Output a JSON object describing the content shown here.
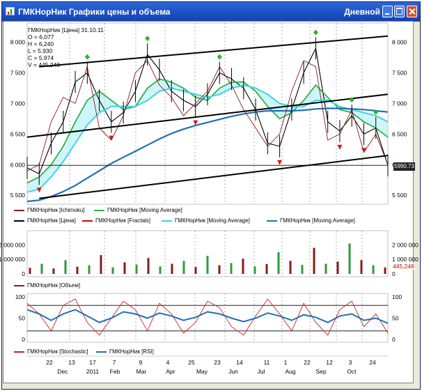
{
  "window": {
    "title": "ГМКНорНик Графики цены и объема",
    "period": "Дневной",
    "icon": "chart-app-icon",
    "buttons": [
      "minimize-icon",
      "maximize-icon",
      "close-icon"
    ]
  },
  "info_box": {
    "header": "ГМКНорНик [Цена] 31.10.11",
    "open": "O = 6,077",
    "high": "H = 6,240",
    "low": "L = 5,930",
    "close": "C = 5,974",
    "volume": "V = 445,248"
  },
  "last_price_label": "5990.73",
  "last_volume_label": "445,248",
  "legends": {
    "price": [
      {
        "label": "ГМКНорНик [Ichimoku]",
        "color": "#8b1a1a"
      },
      {
        "label": "ГМКНорНик [Moving Average]",
        "color": "#2db34a"
      },
      {
        "label": "ГМКНорНик [Цена]",
        "color": "#000000"
      },
      {
        "label": "ГМКНорНик [Fractals]",
        "color": "#cc0000"
      },
      {
        "label": "ГМКНорНик [Moving Average]",
        "color": "#3cd4e6"
      },
      {
        "label": "ГМКНорНик [Moving Average]",
        "color": "#1f6fb4"
      }
    ],
    "volume": [
      {
        "label": "ГМКНорНик [Объем]",
        "color": "#8b1a1a"
      }
    ],
    "oscillator": [
      {
        "label": "ГМКНорНик [Stochastic]",
        "color": "#cc2222"
      },
      {
        "label": "ГМКНорНик [RSI]",
        "color": "#1f6fb4"
      }
    ]
  },
  "chart_data": [
    {
      "type": "line",
      "name": "price-panel",
      "y_ticks": [
        "8 000",
        "7 500",
        "7 000",
        "6 500",
        "6 000",
        "5 500"
      ],
      "y_tick_values": [
        8000,
        7500,
        7000,
        6500,
        6000,
        5500
      ],
      "ylim": [
        5400,
        8200
      ],
      "x": [
        0,
        8,
        16,
        24,
        32,
        40,
        48,
        56,
        64,
        72,
        80,
        88,
        96,
        104,
        112,
        120,
        128,
        136,
        144,
        152,
        160,
        168,
        176,
        184,
        192,
        200,
        208,
        216,
        224,
        232,
        240
      ],
      "series": [
        {
          "name": "ГМКНорНик [Цена]",
          "values": [
            5950,
            5850,
            6350,
            6700,
            7350,
            7500,
            7050,
            6700,
            6850,
            7200,
            7800,
            7550,
            7200,
            7050,
            6950,
            7150,
            7500,
            7400,
            7250,
            6900,
            6350,
            6300,
            6900,
            7500,
            7900,
            6700,
            6550,
            6800,
            6500,
            6600,
            5990
          ]
        },
        {
          "name": "ГМКНорНик [Moving Average]",
          "values": [
            5700,
            5800,
            6000,
            6300,
            6700,
            7050,
            7200,
            7050,
            6900,
            6950,
            7250,
            7400,
            7350,
            7250,
            7100,
            7050,
            7250,
            7350,
            7350,
            7200,
            6950,
            6750,
            6850,
            7050,
            7300,
            7100,
            6900,
            6850,
            6700,
            6600,
            6450
          ]
        },
        {
          "name": "ГМКНорНик [Moving Average]",
          "values": [
            5550,
            5600,
            5800,
            6050,
            6350,
            6650,
            6850,
            6950,
            6950,
            6950,
            7050,
            7200,
            7250,
            7200,
            7150,
            7100,
            7150,
            7250,
            7300,
            7250,
            7150,
            7000,
            6950,
            6950,
            7050,
            7050,
            6950,
            6900,
            6850,
            6800,
            6700
          ]
        },
        {
          "name": "ГМКНорНик [Moving Average]",
          "values": [
            5400,
            5420,
            5480,
            5560,
            5660,
            5780,
            5900,
            6020,
            6120,
            6220,
            6320,
            6420,
            6510,
            6580,
            6640,
            6690,
            6740,
            6790,
            6830,
            6860,
            6880,
            6880,
            6880,
            6890,
            6910,
            6920,
            6920,
            6910,
            6900,
            6880,
            6860
          ]
        },
        {
          "name": "ГМКНорНик [Ichimoku]",
          "values": [
            5900,
            6000,
            6700,
            7100,
            7000,
            7600,
            6600,
            6400,
            6800,
            7500,
            7700,
            7300,
            7100,
            6800,
            7000,
            7200,
            7600,
            7300,
            6900,
            6600,
            6300,
            6500,
            7200,
            7700,
            7600,
            6400,
            6500,
            6900,
            6200,
            6500,
            6000
          ]
        }
      ],
      "channel_lines": [
        {
          "from": [
            8,
            7600
          ],
          "to": [
            240,
            8100
          ]
        },
        {
          "from": [
            0,
            6450
          ],
          "to": [
            240,
            7150
          ]
        },
        {
          "from": [
            8,
            5450
          ],
          "to": [
            240,
            6150
          ]
        }
      ],
      "horizontal_line": 5990
    },
    {
      "type": "bar",
      "name": "volume-panel",
      "y_ticks_left": [
        "2 000 000",
        "1 000 000",
        "0"
      ],
      "y_ticks_right": [
        "2 000 000",
        "1 000 000",
        "0"
      ],
      "ylim": [
        0,
        2600000
      ],
      "values": [
        420000,
        700000,
        380000,
        950000,
        500000,
        600000,
        1300000,
        450000,
        800000,
        650000,
        1100000,
        520000,
        700000,
        900000,
        480000,
        1250000,
        600000,
        750000,
        1050000,
        520000,
        680000,
        1500000,
        900000,
        620000,
        1800000,
        700000,
        850000,
        2100000,
        950000,
        600000,
        445248
      ]
    },
    {
      "type": "line",
      "name": "oscillator-panel",
      "y_ticks": [
        "100",
        "50",
        "0"
      ],
      "ylim": [
        0,
        100
      ],
      "reference_lines": [
        80,
        20
      ],
      "series": [
        {
          "name": "ГМКНорНик [Stochastic]",
          "values": [
            85,
            60,
            20,
            80,
            95,
            40,
            10,
            50,
            90,
            70,
            20,
            85,
            60,
            15,
            40,
            90,
            75,
            30,
            10,
            55,
            95,
            60,
            20,
            85,
            40,
            10,
            70,
            90,
            30,
            60,
            15
          ]
        },
        {
          "name": "ГМКНорНик [RSI]",
          "values": [
            70,
            60,
            45,
            60,
            70,
            55,
            40,
            50,
            65,
            60,
            50,
            62,
            55,
            45,
            52,
            65,
            60,
            50,
            42,
            50,
            62,
            55,
            45,
            58,
            52,
            40,
            55,
            60,
            45,
            50,
            38
          ]
        }
      ]
    }
  ],
  "x_axis": {
    "days": [
      "22",
      "13",
      "17",
      "7",
      "9",
      "4",
      "25",
      "23",
      "14",
      "11",
      "1",
      "22",
      "12",
      "3",
      "24"
    ],
    "months": [
      "Dec",
      "2011",
      "Feb",
      "Mar",
      "Apr",
      "May",
      "Jun",
      "Jul",
      "Aug",
      "Sep",
      "Oct"
    ]
  }
}
